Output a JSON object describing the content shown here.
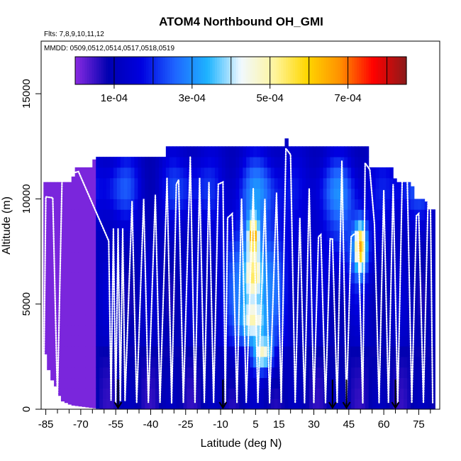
{
  "chart_data": {
    "type": "heatmap",
    "title": "ATOM4 Northbound OH_GMI",
    "flights_label": "Flts: 7,8,9,10,11,12",
    "dates_label": "MMDD: 0509,0512,0514,0517,0518,0519",
    "xlabel": "Latitude (deg N)",
    "ylabel": "Altitude (m)",
    "xlim": [
      -87,
      84
    ],
    "ylim": [
      0,
      17500
    ],
    "x_ticks": [
      -85,
      -70,
      -55,
      -40,
      -25,
      -10,
      5,
      15,
      30,
      45,
      60,
      75
    ],
    "x_minor_ticks": [
      -80,
      -75,
      -65,
      -60,
      -50,
      -45,
      -35,
      -30,
      -20,
      -15,
      -5,
      0,
      10,
      20,
      25,
      35,
      40,
      50,
      55,
      65,
      70,
      80
    ],
    "y_ticks": [
      0,
      5000,
      10000,
      15000
    ],
    "colorbar": {
      "min": 0.0,
      "max": 0.00085,
      "tick_values": [
        0.0001,
        0.0003,
        0.0005,
        0.0007
      ],
      "tick_labels": [
        "1e-04",
        "3e-04",
        "5e-04",
        "7e-04"
      ],
      "divisions": [
        0.0001,
        0.0002,
        0.0003,
        0.0004,
        0.0005,
        0.0006,
        0.0007,
        0.0008
      ],
      "colors": [
        "#8a2be2",
        "#0000b0",
        "#0000e0",
        "#1e64ff",
        "#1eb4ff",
        "#f0f8ff",
        "#fff5a0",
        "#ffd700",
        "#ff9000",
        "#ff0000",
        "#8b1a1a"
      ]
    },
    "field": {
      "lat_range": [
        -86,
        82
      ],
      "lat_step": 1.5,
      "alt_step": 500,
      "top_profile": [
        {
          "lat": -86,
          "alt": 10800
        },
        {
          "lat": -74,
          "alt": 10800
        },
        {
          "lat": -72,
          "alt": 11500
        },
        {
          "lat": -65,
          "alt": 11500
        },
        {
          "lat": -64,
          "alt": 12000
        },
        {
          "lat": -34,
          "alt": 12000
        },
        {
          "lat": -33,
          "alt": 12500
        },
        {
          "lat": 17,
          "alt": 12500
        },
        {
          "lat": 18,
          "alt": 13000
        },
        {
          "lat": 19,
          "alt": 12500
        },
        {
          "lat": 53,
          "alt": 12500
        },
        {
          "lat": 54,
          "alt": 11500
        },
        {
          "lat": 64,
          "alt": 11500
        },
        {
          "lat": 65,
          "alt": 10800
        },
        {
          "lat": 72,
          "alt": 10800
        },
        {
          "lat": 73,
          "alt": 10000
        },
        {
          "lat": 78,
          "alt": 10000
        },
        {
          "lat": 79,
          "alt": 9500
        },
        {
          "lat": 82,
          "alt": 9500
        }
      ],
      "bottom_profile": [
        {
          "lat": -86,
          "alt": 3000
        },
        {
          "lat": -85,
          "alt": 2500
        },
        {
          "lat": -84,
          "alt": 2000
        },
        {
          "lat": -83,
          "alt": 1500
        },
        {
          "lat": -81,
          "alt": 1200
        },
        {
          "lat": -80,
          "alt": 800
        },
        {
          "lat": -78,
          "alt": 400
        },
        {
          "lat": -74,
          "alt": 200
        },
        {
          "lat": -60,
          "alt": 0
        },
        {
          "lat": 82,
          "alt": 0
        }
      ],
      "hotspots": [
        {
          "lat": 4,
          "alt": 8200,
          "dlat": 2.2,
          "dalt": 900,
          "peak": 0.00068
        },
        {
          "lat": 4,
          "alt": 6400,
          "dlat": 3.5,
          "dalt": 1200,
          "peak": 0.00056
        },
        {
          "lat": 4,
          "alt": 4300,
          "dlat": 4.5,
          "dalt": 900,
          "peak": 0.0005
        },
        {
          "lat": 8,
          "alt": 2700,
          "dlat": 4,
          "dalt": 800,
          "peak": 0.00048
        },
        {
          "lat": 50,
          "alt": 7700,
          "dlat": 2.5,
          "dalt": 1100,
          "peak": 0.00066
        }
      ]
    },
    "flight_track": [
      {
        "lat": -86,
        "alt": 200
      },
      {
        "lat": -85,
        "alt": 10100
      },
      {
        "lat": -82,
        "alt": 10050
      },
      {
        "lat": -80,
        "alt": 500
      },
      {
        "lat": -78,
        "alt": 11100
      },
      {
        "lat": -71,
        "alt": 11300
      },
      {
        "lat": -58,
        "alt": 8000
      },
      {
        "lat": -57,
        "alt": 400
      },
      {
        "lat": -56,
        "alt": 8600
      },
      {
        "lat": -55,
        "alt": 300
      },
      {
        "lat": -54,
        "alt": 8600
      },
      {
        "lat": -53,
        "alt": 400
      },
      {
        "lat": -52,
        "alt": 8600
      },
      {
        "lat": -51,
        "alt": 400
      },
      {
        "lat": -48,
        "alt": 9900
      },
      {
        "lat": -46,
        "alt": 300
      },
      {
        "lat": -43,
        "alt": 10000
      },
      {
        "lat": -41,
        "alt": 300
      },
      {
        "lat": -38,
        "alt": 10200
      },
      {
        "lat": -36,
        "alt": 300
      },
      {
        "lat": -33,
        "alt": 11000
      },
      {
        "lat": -31,
        "alt": 300
      },
      {
        "lat": -29,
        "alt": 10700
      },
      {
        "lat": -28,
        "alt": 10900
      },
      {
        "lat": -26,
        "alt": 300
      },
      {
        "lat": -23,
        "alt": 12000
      },
      {
        "lat": -21,
        "alt": 300
      },
      {
        "lat": -19,
        "alt": 11000
      },
      {
        "lat": -17,
        "alt": 300
      },
      {
        "lat": -15,
        "alt": 10800
      },
      {
        "lat": -13,
        "alt": 300
      },
      {
        "lat": -11,
        "alt": 10700
      },
      {
        "lat": -9,
        "alt": 10800
      },
      {
        "lat": -8,
        "alt": 300
      },
      {
        "lat": -7,
        "alt": 9100
      },
      {
        "lat": -5,
        "alt": 9300
      },
      {
        "lat": -3,
        "alt": 300
      },
      {
        "lat": -1,
        "alt": 10000
      },
      {
        "lat": 1,
        "alt": 300
      },
      {
        "lat": 4,
        "alt": 10500
      },
      {
        "lat": 6,
        "alt": 300
      },
      {
        "lat": 9,
        "alt": 10000
      },
      {
        "lat": 11,
        "alt": 300
      },
      {
        "lat": 14,
        "alt": 10300
      },
      {
        "lat": 16,
        "alt": 300
      },
      {
        "lat": 18,
        "alt": 12400
      },
      {
        "lat": 20,
        "alt": 12100
      },
      {
        "lat": 22,
        "alt": 300
      },
      {
        "lat": 24,
        "alt": 9100
      },
      {
        "lat": 26,
        "alt": 300
      },
      {
        "lat": 28,
        "alt": 10500
      },
      {
        "lat": 30,
        "alt": 300
      },
      {
        "lat": 32,
        "alt": 8200
      },
      {
        "lat": 33,
        "alt": 8300
      },
      {
        "lat": 35,
        "alt": 300
      },
      {
        "lat": 37,
        "alt": 8100
      },
      {
        "lat": 38,
        "alt": 8100
      },
      {
        "lat": 40,
        "alt": 300
      },
      {
        "lat": 42,
        "alt": 11800
      },
      {
        "lat": 44,
        "alt": 300
      },
      {
        "lat": 46,
        "alt": 8200
      },
      {
        "lat": 47,
        "alt": 8300
      },
      {
        "lat": 49,
        "alt": 8400
      },
      {
        "lat": 51,
        "alt": 300
      },
      {
        "lat": 52,
        "alt": 11700
      },
      {
        "lat": 54,
        "alt": 11400
      },
      {
        "lat": 56,
        "alt": 8800
      },
      {
        "lat": 58,
        "alt": 300
      },
      {
        "lat": 60,
        "alt": 10400
      },
      {
        "lat": 62,
        "alt": 300
      },
      {
        "lat": 64,
        "alt": 10700
      },
      {
        "lat": 66,
        "alt": 300
      },
      {
        "lat": 68,
        "alt": 11400
      },
      {
        "lat": 70,
        "alt": 11300
      },
      {
        "lat": 72,
        "alt": 300
      },
      {
        "lat": 74,
        "alt": 9200
      },
      {
        "lat": 75,
        "alt": 9300
      },
      {
        "lat": 77,
        "alt": 300
      },
      {
        "lat": 79,
        "alt": 10000
      },
      {
        "lat": 80,
        "alt": 9900
      },
      {
        "lat": 81,
        "alt": 300
      }
    ],
    "arrows": [
      {
        "lat": -54,
        "alt_top": 600,
        "alt_bottom": 0
      },
      {
        "lat": -9,
        "alt_top": 600,
        "alt_bottom": 0
      },
      {
        "lat": 38,
        "alt_top": 600,
        "alt_bottom": 0
      },
      {
        "lat": 44,
        "alt_top": 600,
        "alt_bottom": 0
      },
      {
        "lat": 65,
        "alt_top": 600,
        "alt_bottom": 0
      }
    ]
  }
}
